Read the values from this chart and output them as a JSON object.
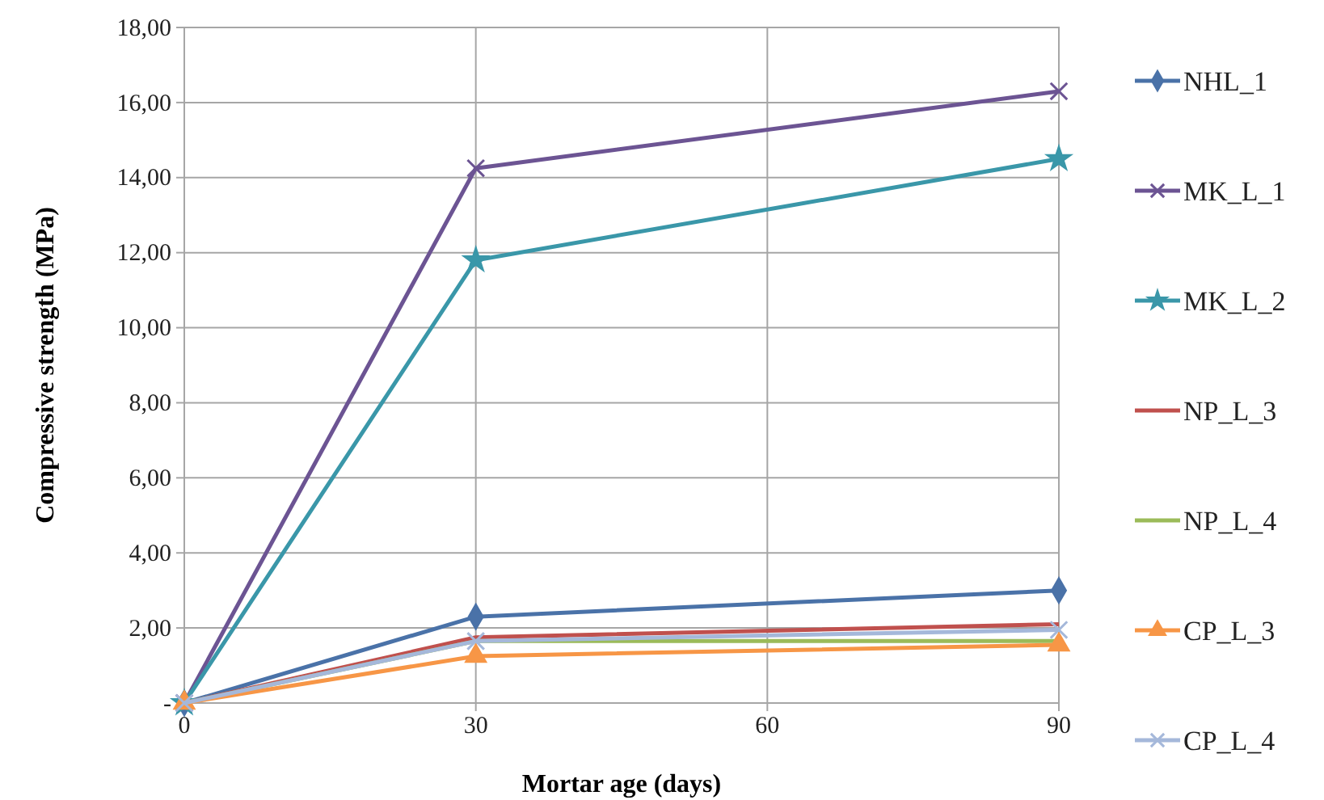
{
  "chart_data": {
    "type": "line",
    "xlabel": "Mortar age (days)",
    "ylabel": "Compressive strength (MPa)",
    "x": [
      0,
      30,
      90
    ],
    "xlim": [
      0,
      90
    ],
    "xticks": [
      0,
      30,
      60,
      90
    ],
    "ylim": [
      0,
      18
    ],
    "yticks": [
      {
        "value": 0,
        "label": "-"
      },
      {
        "value": 2,
        "label": "2,00"
      },
      {
        "value": 4,
        "label": "4,00"
      },
      {
        "value": 6,
        "label": "6,00"
      },
      {
        "value": 8,
        "label": "8,00"
      },
      {
        "value": 10,
        "label": "10,00"
      },
      {
        "value": 12,
        "label": "12,00"
      },
      {
        "value": 14,
        "label": "14,00"
      },
      {
        "value": 16,
        "label": "16,00"
      },
      {
        "value": 18,
        "label": "18,00"
      }
    ],
    "grid": true,
    "legend": "right",
    "series": [
      {
        "name": "NHL_1",
        "color": "#4a72a8",
        "marker": "diamond",
        "values": [
          0,
          2.3,
          3.0
        ]
      },
      {
        "name": "MK_L_1",
        "color": "#6c5493",
        "marker": "cross",
        "values": [
          0,
          14.25,
          16.3
        ]
      },
      {
        "name": "MK_L_2",
        "color": "#3a97a9",
        "marker": "star",
        "values": [
          0,
          11.8,
          14.5
        ]
      },
      {
        "name": "NP_L_3",
        "color": "#c0504d",
        "marker": "none",
        "values": [
          0,
          1.75,
          2.1
        ]
      },
      {
        "name": "NP_L_4",
        "color": "#9bbb59",
        "marker": "none",
        "values": [
          0,
          1.65,
          1.65
        ]
      },
      {
        "name": "CP_L_3",
        "color": "#f79646",
        "marker": "triangle",
        "values": [
          0,
          1.25,
          1.55
        ]
      },
      {
        "name": "CP_L_4",
        "color": "#a5b8da",
        "marker": "cross",
        "values": [
          0,
          1.65,
          1.95
        ]
      }
    ]
  }
}
